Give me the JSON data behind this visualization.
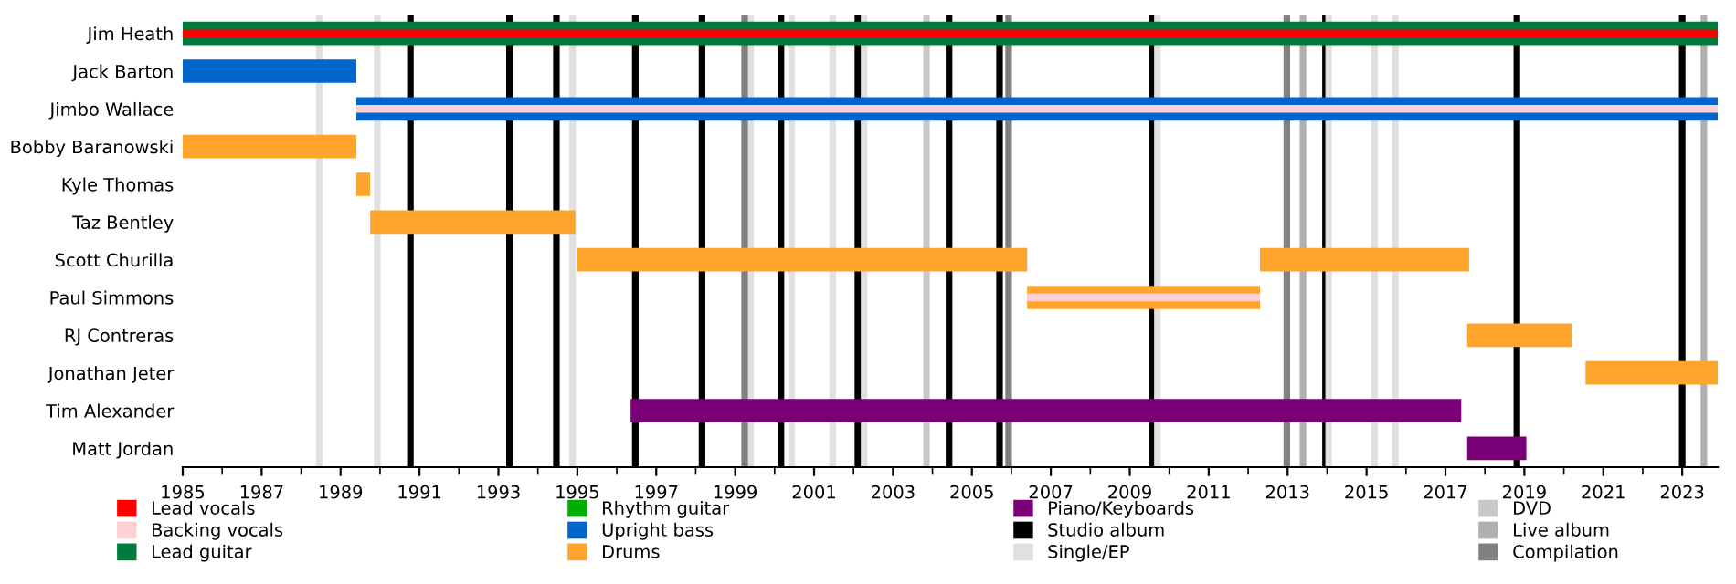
{
  "chart_data": {
    "type": "bar",
    "orientation": "horizontal",
    "categories": [
      "Jim Heath",
      "Jack Barton",
      "Jimbo Wallace",
      "Bobby Baranowski",
      "Kyle Thomas",
      "Taz Bentley",
      "Scott Churilla",
      "Paul Simmons",
      "RJ Contreras",
      "Jonathan Jeter",
      "Tim Alexander",
      "Matt Jordan"
    ],
    "series": [
      {
        "name": "Lead vocals",
        "color": "#ff0000",
        "base": [
          1985,
          null,
          null,
          null,
          null,
          null,
          null,
          null,
          null,
          null,
          null,
          null
        ],
        "values": [
          38.9,
          null,
          null,
          null,
          null,
          null,
          null,
          null,
          null,
          null,
          null,
          null
        ]
      },
      {
        "name": "Backing vocals",
        "color": "#ffcfd6",
        "base": [
          null,
          null,
          1989.4,
          null,
          null,
          null,
          null,
          2006.4,
          null,
          null,
          null,
          null
        ],
        "values": [
          null,
          null,
          34.5,
          null,
          null,
          null,
          null,
          5.9,
          null,
          null,
          null,
          null
        ]
      },
      {
        "name": "Lead guitar",
        "color": "#007a3d",
        "base": [
          1985,
          null,
          null,
          null,
          null,
          null,
          null,
          null,
          null,
          null,
          null,
          null
        ],
        "values": [
          38.9,
          null,
          null,
          null,
          null,
          null,
          null,
          null,
          null,
          null,
          null,
          null
        ]
      },
      {
        "name": "Rhythm guitar",
        "color": "#00b000",
        "base": [
          null,
          null,
          null,
          null,
          null,
          null,
          null,
          null,
          null,
          null,
          null,
          null
        ],
        "values": [
          null,
          null,
          null,
          null,
          null,
          null,
          null,
          null,
          null,
          null,
          null,
          null
        ]
      },
      {
        "name": "Upright bass",
        "color": "#0066cc",
        "base": [
          null,
          1985,
          1989.4,
          null,
          null,
          null,
          null,
          null,
          null,
          null,
          null,
          null
        ],
        "values": [
          null,
          4.4,
          34.5,
          null,
          null,
          null,
          null,
          null,
          null,
          null,
          null,
          null
        ]
      },
      {
        "name": "Drums",
        "color": "#ffa52c",
        "base": [
          null,
          null,
          null,
          1985,
          1989.4,
          1989.75,
          1995.0,
          2006.4,
          2017.55,
          2020.55,
          null,
          null
        ],
        "values": [
          null,
          null,
          null,
          4.4,
          0.35,
          5.2,
          11.4,
          5.9,
          2.65,
          3.35,
          null,
          null
        ]
      },
      {
        "color": "#ffa52c",
        "base": [
          null,
          null,
          null,
          null,
          null,
          null,
          2012.3,
          null,
          null,
          null,
          null,
          null
        ],
        "values": [
          null,
          null,
          null,
          null,
          null,
          null,
          5.3,
          null,
          null,
          null,
          null,
          null
        ]
      },
      {
        "name": "Piano/Keyboards",
        "color": "#7a0077",
        "base": [
          null,
          null,
          null,
          null,
          null,
          null,
          null,
          null,
          null,
          null,
          1996.35,
          2017.55
        ],
        "values": [
          null,
          null,
          null,
          null,
          null,
          null,
          null,
          null,
          null,
          null,
          21.05,
          1.5
        ]
      }
    ],
    "xlim": [
      1985,
      2023.9
    ],
    "xticks": [
      1985,
      1987,
      1989,
      1991,
      1993,
      1995,
      1997,
      1999,
      2001,
      2003,
      2005,
      2007,
      2009,
      2011,
      2013,
      2015,
      2017,
      2019,
      2021,
      2023
    ],
    "ref_lines": [
      {
        "axis": "x",
        "value": 1990.77,
        "label": "Studio album",
        "color": "#000000"
      },
      {
        "axis": "x",
        "value": 1993.28,
        "color": "#000000"
      },
      {
        "axis": "x",
        "value": 1994.47,
        "color": "#000000"
      },
      {
        "axis": "x",
        "value": 1996.47,
        "color": "#000000"
      },
      {
        "axis": "x",
        "value": 1998.16,
        "color": "#000000"
      },
      {
        "axis": "x",
        "value": 2000.16,
        "color": "#000000"
      },
      {
        "axis": "x",
        "value": 2002.11,
        "color": "#000000"
      },
      {
        "axis": "x",
        "value": 2004.42,
        "color": "#000000"
      },
      {
        "axis": "x",
        "value": 2005.7,
        "color": "#000000"
      },
      {
        "axis": "x",
        "value": 2009.58,
        "color": "#000000"
      },
      {
        "axis": "x",
        "value": 2013.96,
        "color": "#000000"
      },
      {
        "axis": "x",
        "value": 2018.81,
        "color": "#000000"
      },
      {
        "axis": "x",
        "value": 2023.0,
        "color": "#000000"
      },
      {
        "axis": "x",
        "value": 1988.46,
        "label": "Single/EP",
        "color": "#e0e0e0"
      },
      {
        "axis": "x",
        "value": 1989.93,
        "color": "#e0e0e0"
      },
      {
        "axis": "x",
        "value": 1994.88,
        "color": "#e0e0e0"
      },
      {
        "axis": "x",
        "value": 1999.39,
        "color": "#e0e0e0"
      },
      {
        "axis": "x",
        "value": 2000.43,
        "color": "#e0e0e0"
      },
      {
        "axis": "x",
        "value": 2001.47,
        "color": "#e0e0e0"
      },
      {
        "axis": "x",
        "value": 2002.27,
        "color": "#e0e0e0"
      },
      {
        "axis": "x",
        "value": 2009.7,
        "color": "#e0e0e0"
      },
      {
        "axis": "x",
        "value": 2014.04,
        "color": "#e0e0e0"
      },
      {
        "axis": "x",
        "value": 2015.2,
        "color": "#e0e0e0"
      },
      {
        "axis": "x",
        "value": 2015.73,
        "color": "#e0e0e0"
      },
      {
        "axis": "x",
        "value": 2003.85,
        "label": "DVD",
        "color": "#c8c8c8"
      },
      {
        "axis": "x",
        "value": 2013.39,
        "label": "Live album",
        "color": "#b0b0b0"
      },
      {
        "axis": "x",
        "value": 2023.55,
        "color": "#b0b0b0"
      },
      {
        "axis": "x",
        "value": 1999.24,
        "label": "Compilation",
        "color": "#808080"
      },
      {
        "axis": "x",
        "value": 2005.93,
        "color": "#808080"
      },
      {
        "axis": "x",
        "value": 2012.98,
        "color": "#808080"
      }
    ],
    "grid": false,
    "legend": "bottom"
  }
}
